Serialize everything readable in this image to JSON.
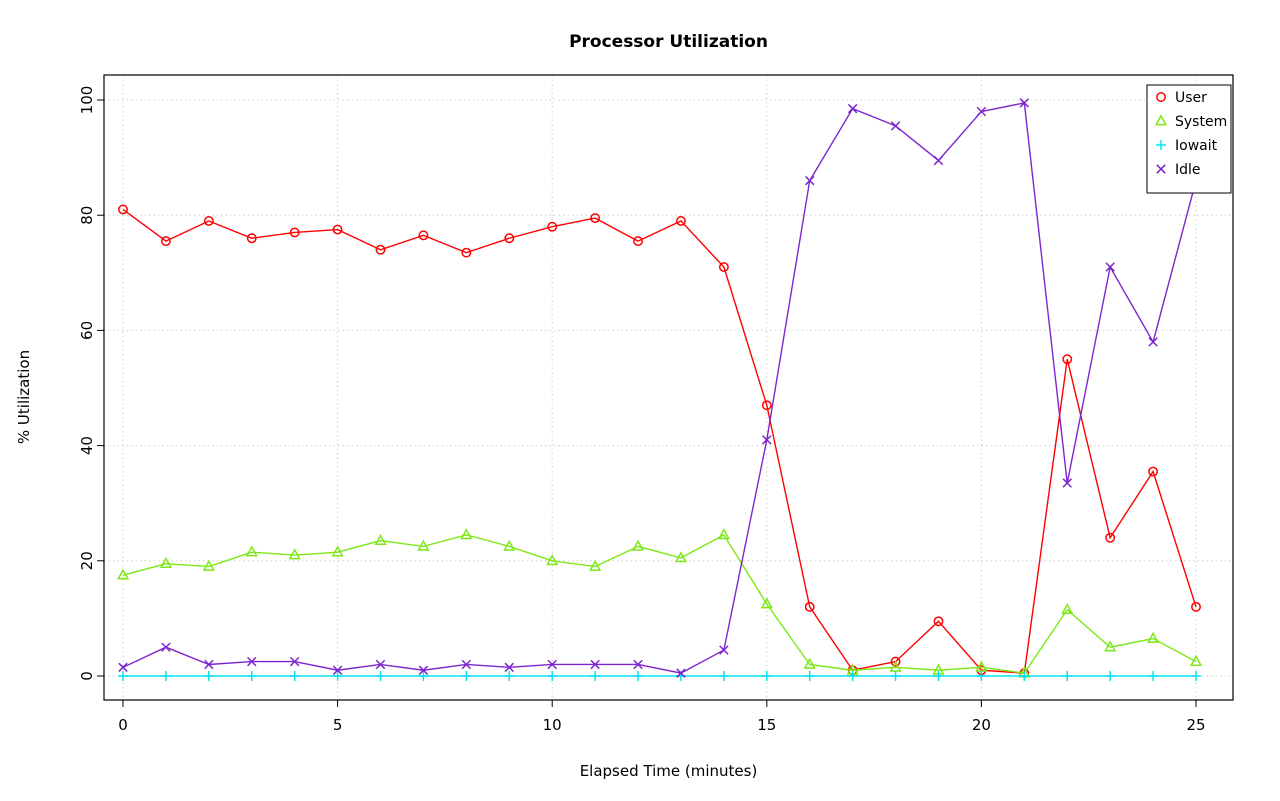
{
  "chart_data": {
    "type": "line",
    "title": "Processor Utilization",
    "xlabel": "Elapsed Time (minutes)",
    "ylabel": "% Utilization",
    "xlim": [
      0,
      25
    ],
    "ylim": [
      0,
      100
    ],
    "xticks": [
      0,
      5,
      10,
      15,
      20,
      25
    ],
    "yticks": [
      0,
      20,
      40,
      60,
      80,
      100
    ],
    "grid": true,
    "legend_position": "top-right",
    "x": [
      0,
      1,
      2,
      3,
      4,
      5,
      6,
      7,
      8,
      9,
      10,
      11,
      12,
      13,
      14,
      15,
      16,
      17,
      18,
      19,
      20,
      21,
      22,
      23,
      24,
      25
    ],
    "series": [
      {
        "name": "User",
        "color": "#FF0000",
        "symbol": "circle",
        "values": [
          81,
          75.5,
          79,
          76,
          77,
          77.5,
          74,
          76.5,
          73.5,
          76,
          78,
          79.5,
          75.5,
          79,
          71,
          47,
          12,
          1,
          2.5,
          9.5,
          1,
          0.5,
          55,
          24,
          35.5,
          12
        ]
      },
      {
        "name": "System",
        "color": "#7CE817",
        "symbol": "triangle",
        "values": [
          17.5,
          19.5,
          19,
          21.5,
          21,
          21.5,
          23.5,
          22.5,
          24.5,
          22.5,
          20,
          19,
          22.5,
          20.5,
          24.5,
          12.5,
          2,
          1,
          1.5,
          1,
          1.5,
          0.5,
          11.5,
          5,
          6.5,
          2.5
        ]
      },
      {
        "name": "Iowait",
        "color": "#00E5EE",
        "symbol": "plus",
        "values": [
          0,
          0,
          0,
          0,
          0,
          0,
          0,
          0,
          0,
          0,
          0,
          0,
          0,
          0,
          0,
          0,
          0,
          0,
          0,
          0,
          0,
          0,
          0,
          0,
          0,
          0
        ]
      },
      {
        "name": "Idle",
        "color": "#7D26CD",
        "symbol": "x",
        "values": [
          1.5,
          5,
          2,
          2.5,
          2.5,
          1,
          2,
          1,
          2,
          1.5,
          2,
          2,
          2,
          0.5,
          4.5,
          41,
          86,
          98.5,
          95.5,
          89.5,
          98,
          99.5,
          33.5,
          71,
          58,
          86
        ]
      }
    ]
  }
}
